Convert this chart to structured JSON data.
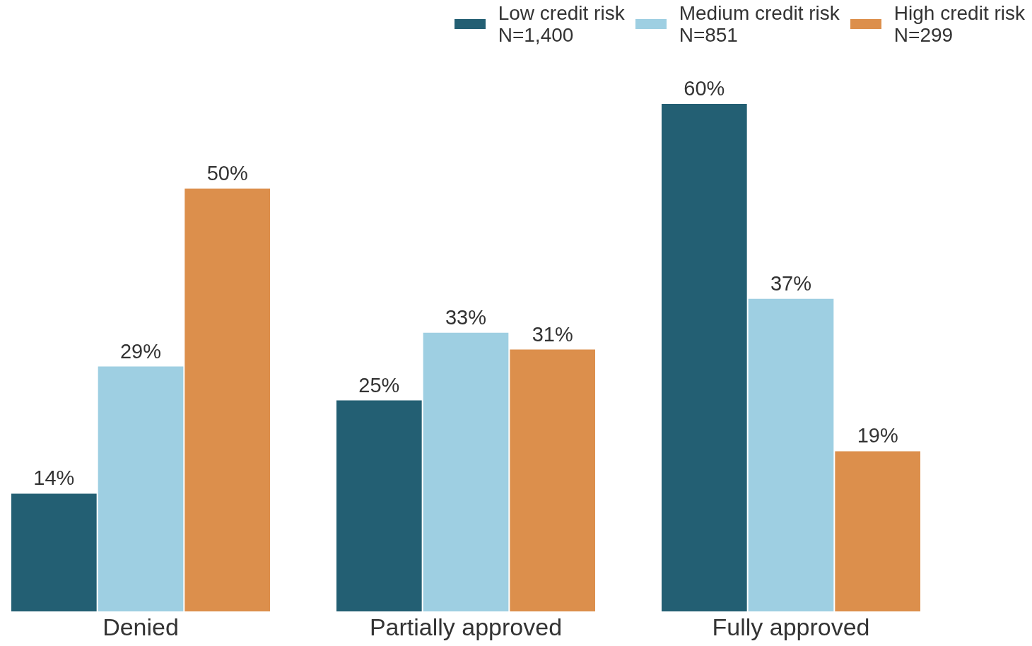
{
  "chart_data": {
    "type": "bar",
    "categories": [
      "Denied",
      "Partially approved",
      "Fully approved"
    ],
    "series": [
      {
        "name": "Low credit risk\nN=1,400",
        "color": "#235f73",
        "values": [
          14,
          25,
          60
        ],
        "value_labels": [
          "14%",
          "25%",
          "60%"
        ]
      },
      {
        "name": "Medium credit risk\nN=851",
        "color": "#9ecfe2",
        "values": [
          29,
          33,
          37
        ],
        "value_labels": [
          "29%",
          "33%",
          "37%"
        ]
      },
      {
        "name": "High credit risk\nN=299",
        "color": "#dc8f4c",
        "values": [
          50,
          31,
          19
        ],
        "value_labels": [
          "50%",
          "31%",
          "19%"
        ]
      }
    ],
    "legend": "top right",
    "grid": false
  }
}
